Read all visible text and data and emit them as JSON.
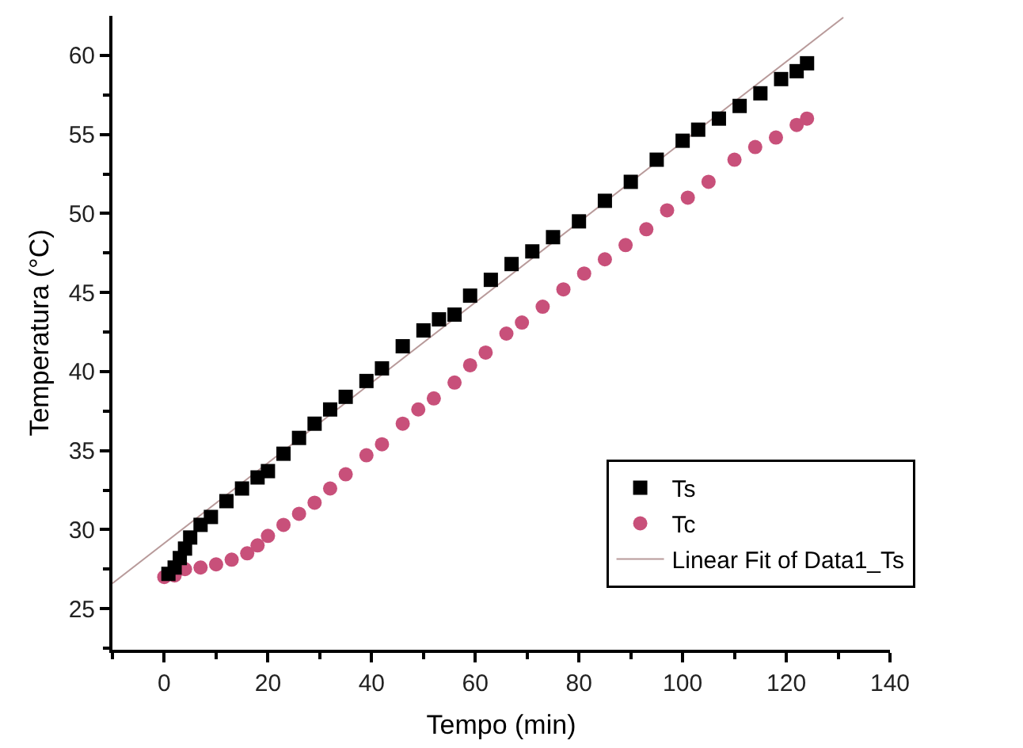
{
  "chart_data": {
    "type": "scatter",
    "xlabel": "Tempo (min)",
    "ylabel": "Temperatura (°C)",
    "xlim": [
      -10,
      140
    ],
    "xticks": [
      0,
      20,
      40,
      60,
      80,
      100,
      120,
      140
    ],
    "ylim": [
      22.4,
      62.5
    ],
    "yticks": [
      25,
      30,
      35,
      40,
      45,
      50,
      55,
      60
    ],
    "grid": false,
    "legend": "bottom right",
    "series": [
      {
        "name": "Ts",
        "color": "#000000",
        "marker": "square",
        "x": [
          0.8,
          2,
          3,
          4,
          5,
          7,
          9,
          12,
          15,
          18,
          20,
          23,
          26,
          29,
          32,
          35,
          39,
          42,
          46,
          50,
          53,
          56,
          59,
          63,
          67,
          71,
          75,
          80,
          85,
          90,
          95,
          100,
          103,
          107,
          111,
          115,
          119,
          122,
          124
        ],
        "values": [
          27.2,
          27.6,
          28.2,
          28.8,
          29.5,
          30.3,
          30.8,
          31.8,
          32.6,
          33.3,
          33.7,
          34.8,
          35.8,
          36.7,
          37.6,
          38.4,
          39.4,
          40.2,
          41.6,
          42.6,
          43.3,
          43.6,
          44.8,
          45.8,
          46.8,
          47.6,
          48.5,
          49.5,
          50.8,
          52,
          53.4,
          54.6,
          55.3,
          56,
          56.8,
          57.6,
          58.5,
          59,
          59.5
        ]
      },
      {
        "name": "Tc",
        "color": "#c8507a",
        "marker": "circle",
        "x": [
          0,
          2,
          4,
          7,
          10,
          13,
          16,
          18,
          20,
          23,
          26,
          29,
          32,
          35,
          39,
          42,
          46,
          49,
          52,
          56,
          59,
          62,
          66,
          69,
          73,
          77,
          81,
          85,
          89,
          93,
          97,
          101,
          105,
          110,
          114,
          118,
          122,
          124
        ],
        "values": [
          27,
          27.1,
          27.5,
          27.6,
          27.8,
          28.1,
          28.5,
          29,
          29.6,
          30.3,
          31,
          31.7,
          32.6,
          33.5,
          34.7,
          35.4,
          36.7,
          37.6,
          38.3,
          39.3,
          40.4,
          41.2,
          42.4,
          43.1,
          44.1,
          45.2,
          46.2,
          47.1,
          48,
          49,
          50.2,
          51,
          52,
          53.4,
          54.2,
          54.8,
          55.6,
          56
        ]
      },
      {
        "name": "Linear Fit of Data1_Ts",
        "type": "line",
        "color": "#b89a9a",
        "line_style": "solid",
        "x": [
          -10,
          131
        ],
        "values": [
          26.6,
          62.4
        ]
      }
    ]
  }
}
